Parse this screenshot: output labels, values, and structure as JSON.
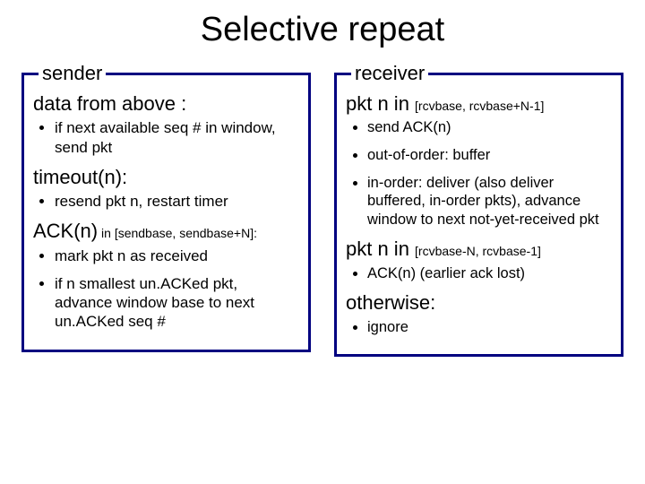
{
  "title": "Selective repeat",
  "sender": {
    "legend": "sender",
    "h1": "data from above :",
    "b1": "if next available seq # in window, send pkt",
    "h2": "timeout(n):",
    "b2": "resend pkt n, restart timer",
    "h3_a": "ACK(n)",
    "h3_b": " in ",
    "h3_c": "[sendbase, sendbase+N]:",
    "b3": "mark pkt n as received",
    "b4": "if n smallest un.ACKed pkt, advance window base to next un.ACKed seq #"
  },
  "receiver": {
    "legend": "receiver",
    "h1_a": "pkt n in ",
    "h1_b": "[rcvbase, rcvbase+N-1]",
    "b1": "send ACK(n)",
    "b2": "out-of-order: buffer",
    "b3": "in-order: deliver (also deliver buffered, in-order pkts), advance window to next not-yet-received pkt",
    "h2_a": "pkt n in ",
    "h2_b": "[rcvbase-N, rcvbase-1]",
    "b4": "ACK(n) (earlier ack lost)",
    "h3": "otherwise:",
    "b5": "ignore"
  },
  "colors": {
    "border": "#000080",
    "text": "#000000",
    "bg": "#ffffff"
  }
}
